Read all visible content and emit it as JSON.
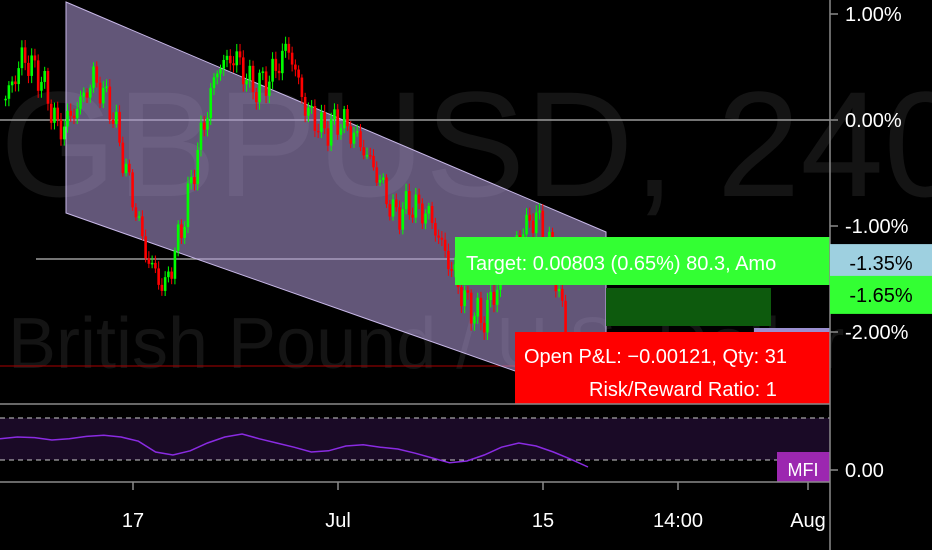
{
  "watermark": {
    "symbol": "GBPUSD, 240",
    "description": "British Pound / U.S. Dollar"
  },
  "y_axis_labels": [
    {
      "value": 1.0,
      "label": "1.00%"
    },
    {
      "value": 0.0,
      "label": "0.00%"
    },
    {
      "value": -1.0,
      "label": "-1.00%"
    },
    {
      "value": -2.0,
      "label": "-2.00%"
    }
  ],
  "x_axis_labels": [
    "17",
    "Jul",
    "15",
    "14:00",
    "Aug"
  ],
  "price_badges": [
    {
      "label": "-1.35%",
      "value": -1.35,
      "color": "#9ed0e0",
      "text_color": "#000000"
    },
    {
      "label": "-1.65%",
      "value": -1.65,
      "color": "#33ff33",
      "text_color": "#000000"
    }
  ],
  "position_tool": {
    "target_label": "Target: 0.00803 (0.65%) 80.3, Amo",
    "open_pnl_label": "Open P&L: −0.00121, Qty: 31",
    "risk_reward_label": "Risk/Reward Ratio: 1",
    "target_color": "#33ff33",
    "stop_color": "#ff0000"
  },
  "indicator": {
    "name": "MFI",
    "axis_label": "0.00",
    "badge_color": "#9c27b0",
    "line_color": "#8a2be2"
  },
  "colors": {
    "up_candle": "#00ff00",
    "down_candle": "#ff0000",
    "channel_fill": "#b39ddb",
    "background": "#000000"
  },
  "chart_data": {
    "type": "candlestick",
    "y_unit": "percent",
    "ylim": [
      -2.6,
      1.1
    ],
    "x_tick_labels": [
      "17",
      "Jul",
      "15",
      "14:00",
      "Aug"
    ],
    "close_path": [
      0.2,
      0.6,
      0.4,
      -0.1,
      0.1,
      0.4,
      0.1,
      -0.6,
      -1.3,
      -1.6,
      -1.0,
      -0.2,
      0.5,
      0.6,
      0.3,
      0.4,
      0.7,
      0.1,
      -0.1,
      0.0,
      -0.2,
      -0.5,
      -0.9,
      -0.8,
      -0.9,
      -1.3,
      -1.7,
      -1.9,
      -1.5,
      -1.1,
      -0.9,
      -1.3,
      -2.3,
      -2.5
    ],
    "indicator_series": {
      "name": "MFI",
      "values": [
        52,
        55,
        54,
        50,
        52,
        56,
        58,
        55,
        48,
        30,
        25,
        32,
        45,
        55,
        60,
        52,
        45,
        38,
        30,
        32,
        40,
        42,
        38,
        35,
        28,
        20,
        12,
        15,
        25,
        38,
        45,
        40,
        30,
        18,
        5
      ]
    }
  }
}
